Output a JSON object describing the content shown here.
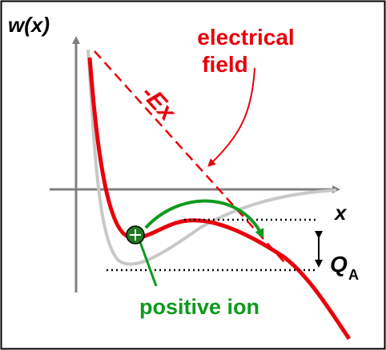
{
  "labels": {
    "y_axis": "w(x)",
    "x_axis": "x",
    "field_line1": "electrical",
    "field_line2": "field",
    "field_term": "-Ex",
    "activation": "Q",
    "activation_sub": "A",
    "ion": "positive ion"
  },
  "colors": {
    "red": "#e8000b",
    "gray": "#c8c8c8",
    "green": "#0e9a1e",
    "ion_fill": "#1f7a1f",
    "axis": "#7f7f7f",
    "frame": "#000000",
    "text": "#000000"
  }
}
